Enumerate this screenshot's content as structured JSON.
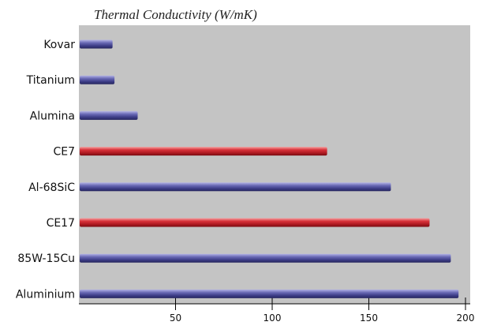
{
  "chart_data": {
    "type": "bar",
    "orientation": "horizontal",
    "title": "Thermal Conductivity (W/mK)",
    "xlabel": "",
    "ylabel": "",
    "categories": [
      "Kovar",
      "Titanium",
      "Alumina",
      "CE7",
      "Al-68SiC",
      "CE17",
      "85W-15Cu",
      "Aluminium"
    ],
    "values": [
      17,
      18,
      30,
      128,
      161,
      181,
      192,
      196
    ],
    "highlighted": [
      "CE7",
      "CE17"
    ],
    "xlim": [
      0,
      200
    ],
    "xticks": [
      50,
      100,
      150,
      200
    ],
    "grid": false,
    "legend": "none"
  },
  "colors": {
    "plot_background": "#c4c4c4",
    "bar_default": "#5656a0",
    "bar_highlight": "#c0242e"
  }
}
